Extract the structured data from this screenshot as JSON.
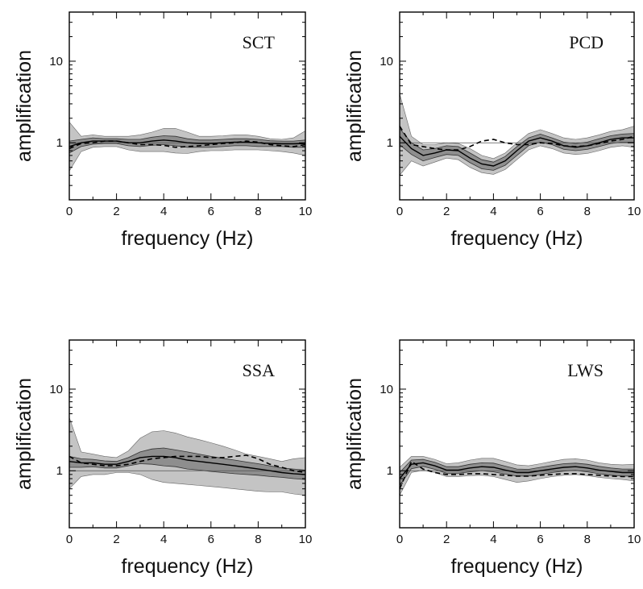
{
  "figure": {
    "xlabel": "frequency (Hz)",
    "ylabel": "amplification",
    "colors": {
      "outer_band": "#c4c4c4",
      "inner_band": "#8e8e8e",
      "line": "#000000",
      "frame": "#000000"
    }
  },
  "chart_data": [
    {
      "type": "line",
      "title": "SCT",
      "xlabel": "frequency (Hz)",
      "ylabel": "amplification",
      "xlim": [
        0,
        10
      ],
      "ylim": [
        0.2,
        40
      ],
      "yscale": "log",
      "x_ticks": [
        0,
        2,
        4,
        6,
        8,
        10
      ],
      "y_ticks": [
        1,
        10
      ],
      "x_tick_labels": [
        "0",
        "2",
        "4",
        "6",
        "8",
        "10"
      ],
      "y_tick_labels": [
        "1",
        "10"
      ],
      "x": [
        0,
        0.5,
        1,
        1.5,
        2,
        2.5,
        3,
        3.5,
        4,
        4.5,
        5,
        5.5,
        6,
        6.5,
        7,
        7.5,
        8,
        8.5,
        9,
        9.5,
        10
      ],
      "series": [
        {
          "role": "mean",
          "style": "solid",
          "values": [
            0.9,
            1.0,
            1.05,
            1.05,
            1.05,
            1.0,
            1.0,
            1.05,
            1.08,
            1.05,
            1.0,
            0.98,
            0.98,
            1.0,
            1.02,
            1.02,
            1.0,
            0.98,
            0.97,
            0.97,
            0.98
          ]
        },
        {
          "role": "inner_band_upper",
          "values": [
            1.05,
            1.1,
            1.15,
            1.12,
            1.12,
            1.1,
            1.1,
            1.17,
            1.22,
            1.2,
            1.12,
            1.08,
            1.08,
            1.1,
            1.12,
            1.12,
            1.1,
            1.06,
            1.05,
            1.05,
            1.08
          ]
        },
        {
          "role": "inner_band_lower",
          "values": [
            0.75,
            0.9,
            0.96,
            0.98,
            0.98,
            0.92,
            0.9,
            0.93,
            0.95,
            0.92,
            0.88,
            0.88,
            0.88,
            0.9,
            0.92,
            0.92,
            0.9,
            0.9,
            0.9,
            0.88,
            0.88
          ]
        },
        {
          "role": "outer_band_upper",
          "values": [
            1.8,
            1.2,
            1.25,
            1.2,
            1.2,
            1.2,
            1.25,
            1.35,
            1.5,
            1.5,
            1.35,
            1.2,
            1.2,
            1.22,
            1.25,
            1.25,
            1.2,
            1.12,
            1.1,
            1.15,
            1.4
          ]
        },
        {
          "role": "outer_band_lower",
          "values": [
            0.45,
            0.78,
            0.88,
            0.9,
            0.9,
            0.82,
            0.78,
            0.78,
            0.78,
            0.75,
            0.74,
            0.78,
            0.8,
            0.8,
            0.82,
            0.82,
            0.82,
            0.8,
            0.78,
            0.75,
            0.7
          ]
        },
        {
          "role": "comparison",
          "style": "dashed",
          "values": [
            0.85,
            0.98,
            1.0,
            1.05,
            1.05,
            1.0,
            0.95,
            0.95,
            0.93,
            0.88,
            0.9,
            0.92,
            0.95,
            0.98,
            1.0,
            1.05,
            1.02,
            0.95,
            0.92,
            0.9,
            0.95
          ]
        }
      ]
    },
    {
      "type": "line",
      "title": "PCD",
      "xlabel": "frequency (Hz)",
      "ylabel": "amplification",
      "xlim": [
        0,
        10
      ],
      "ylim": [
        0.2,
        40
      ],
      "yscale": "log",
      "x_ticks": [
        0,
        2,
        4,
        6,
        8,
        10
      ],
      "y_ticks": [
        1,
        10
      ],
      "x_tick_labels": [
        "0",
        "2",
        "4",
        "6",
        "8",
        "10"
      ],
      "y_tick_labels": [
        "1",
        "10"
      ],
      "x": [
        0,
        0.5,
        1,
        1.5,
        2,
        2.5,
        3,
        3.5,
        4,
        4.5,
        5,
        5.5,
        6,
        6.5,
        7,
        7.5,
        8,
        8.5,
        9,
        9.5,
        10
      ],
      "series": [
        {
          "role": "mean",
          "style": "solid",
          "values": [
            1.2,
            0.85,
            0.7,
            0.75,
            0.82,
            0.8,
            0.65,
            0.55,
            0.52,
            0.6,
            0.8,
            1.05,
            1.15,
            1.05,
            0.92,
            0.88,
            0.92,
            1.0,
            1.1,
            1.15,
            1.15
          ]
        },
        {
          "role": "inner_band_upper",
          "values": [
            1.5,
            1.0,
            0.82,
            0.85,
            0.92,
            0.9,
            0.75,
            0.62,
            0.58,
            0.68,
            0.9,
            1.15,
            1.28,
            1.15,
            1.02,
            0.98,
            1.02,
            1.12,
            1.22,
            1.28,
            1.3
          ]
        },
        {
          "role": "inner_band_lower",
          "values": [
            0.95,
            0.72,
            0.6,
            0.66,
            0.72,
            0.7,
            0.57,
            0.48,
            0.46,
            0.53,
            0.7,
            0.92,
            1.02,
            0.95,
            0.83,
            0.8,
            0.83,
            0.9,
            0.98,
            1.02,
            1.02
          ]
        },
        {
          "role": "outer_band_upper",
          "values": [
            4.0,
            1.2,
            0.95,
            0.95,
            1.0,
            0.98,
            0.85,
            0.7,
            0.64,
            0.75,
            1.0,
            1.3,
            1.45,
            1.3,
            1.15,
            1.1,
            1.15,
            1.25,
            1.38,
            1.45,
            1.6
          ]
        },
        {
          "role": "outer_band_lower",
          "values": [
            0.4,
            0.6,
            0.52,
            0.58,
            0.65,
            0.62,
            0.5,
            0.43,
            0.41,
            0.47,
            0.62,
            0.82,
            0.92,
            0.85,
            0.75,
            0.72,
            0.74,
            0.8,
            0.88,
            0.92,
            0.88
          ]
        },
        {
          "role": "comparison",
          "style": "dashed",
          "values": [
            1.6,
            0.95,
            0.9,
            0.85,
            0.82,
            0.82,
            0.9,
            1.05,
            1.1,
            1.0,
            0.95,
            0.95,
            1.0,
            0.98,
            0.92,
            0.9,
            0.92,
            0.98,
            1.05,
            1.1,
            1.2
          ]
        }
      ]
    },
    {
      "type": "line",
      "title": "SSA",
      "xlabel": "frequency (Hz)",
      "ylabel": "amplification",
      "xlim": [
        0,
        10
      ],
      "ylim": [
        0.2,
        40
      ],
      "yscale": "log",
      "x_ticks": [
        0,
        2,
        4,
        6,
        8,
        10
      ],
      "y_ticks": [
        1,
        10
      ],
      "x_tick_labels": [
        "0",
        "2",
        "4",
        "6",
        "8",
        "10"
      ],
      "y_tick_labels": [
        "1",
        "10"
      ],
      "x": [
        0,
        0.5,
        1,
        1.5,
        2,
        2.5,
        3,
        3.5,
        4,
        4.5,
        5,
        5.5,
        6,
        6.5,
        7,
        7.5,
        8,
        8.5,
        9,
        9.5,
        10
      ],
      "series": [
        {
          "role": "mean",
          "style": "solid",
          "values": [
            1.3,
            1.25,
            1.25,
            1.2,
            1.2,
            1.3,
            1.45,
            1.5,
            1.5,
            1.45,
            1.35,
            1.3,
            1.25,
            1.2,
            1.15,
            1.1,
            1.05,
            1.0,
            0.95,
            0.92,
            0.9
          ]
        },
        {
          "role": "inner_band_upper",
          "values": [
            1.5,
            1.4,
            1.38,
            1.32,
            1.3,
            1.45,
            1.7,
            1.85,
            1.9,
            1.8,
            1.7,
            1.6,
            1.5,
            1.42,
            1.35,
            1.28,
            1.22,
            1.15,
            1.08,
            1.05,
            1.02
          ]
        },
        {
          "role": "inner_band_lower",
          "values": [
            1.1,
            1.1,
            1.12,
            1.08,
            1.08,
            1.15,
            1.22,
            1.2,
            1.15,
            1.12,
            1.05,
            1.02,
            0.98,
            0.95,
            0.92,
            0.9,
            0.88,
            0.85,
            0.83,
            0.8,
            0.78
          ]
        },
        {
          "role": "outer_band_upper",
          "values": [
            4.5,
            1.7,
            1.6,
            1.5,
            1.45,
            1.75,
            2.5,
            3.0,
            3.1,
            2.9,
            2.6,
            2.4,
            2.2,
            2.0,
            1.8,
            1.6,
            1.5,
            1.4,
            1.3,
            1.4,
            1.45
          ]
        },
        {
          "role": "outer_band_lower",
          "values": [
            0.6,
            0.85,
            0.9,
            0.9,
            0.95,
            0.95,
            0.9,
            0.78,
            0.72,
            0.7,
            0.68,
            0.66,
            0.64,
            0.62,
            0.6,
            0.58,
            0.56,
            0.55,
            0.55,
            0.52,
            0.5
          ]
        },
        {
          "role": "comparison",
          "style": "dashed",
          "values": [
            1.5,
            1.25,
            1.2,
            1.15,
            1.15,
            1.2,
            1.3,
            1.4,
            1.45,
            1.5,
            1.5,
            1.5,
            1.45,
            1.45,
            1.5,
            1.55,
            1.4,
            1.2,
            1.1,
            1.0,
            0.95
          ]
        }
      ]
    },
    {
      "type": "line",
      "title": "LWS",
      "xlabel": "frequency (Hz)",
      "ylabel": "amplification",
      "xlim": [
        0,
        10
      ],
      "ylim": [
        0.2,
        40
      ],
      "yscale": "log",
      "x_ticks": [
        0,
        2,
        4,
        6,
        8,
        10
      ],
      "y_ticks": [
        1,
        10
      ],
      "x_tick_labels": [
        "0",
        "2",
        "4",
        "6",
        "8",
        "10"
      ],
      "y_tick_labels": [
        "1",
        "10"
      ],
      "x": [
        0,
        0.5,
        1,
        1.5,
        2,
        2.5,
        3,
        3.5,
        4,
        4.5,
        5,
        5.5,
        6,
        6.5,
        7,
        7.5,
        8,
        8.5,
        9,
        9.5,
        10
      ],
      "series": [
        {
          "role": "mean",
          "style": "solid",
          "values": [
            0.8,
            1.2,
            1.25,
            1.15,
            1.02,
            1.02,
            1.08,
            1.12,
            1.1,
            1.02,
            0.95,
            0.95,
            1.0,
            1.05,
            1.1,
            1.12,
            1.08,
            1.02,
            0.98,
            0.95,
            0.95
          ]
        },
        {
          "role": "inner_band_upper",
          "values": [
            0.95,
            1.35,
            1.38,
            1.27,
            1.12,
            1.12,
            1.2,
            1.25,
            1.24,
            1.14,
            1.05,
            1.04,
            1.1,
            1.16,
            1.22,
            1.24,
            1.2,
            1.13,
            1.08,
            1.05,
            1.05
          ]
        },
        {
          "role": "inner_band_lower",
          "values": [
            0.66,
            1.06,
            1.13,
            1.04,
            0.93,
            0.93,
            0.97,
            1.0,
            0.97,
            0.91,
            0.86,
            0.86,
            0.9,
            0.95,
            0.99,
            1.01,
            0.97,
            0.92,
            0.88,
            0.86,
            0.86
          ]
        },
        {
          "role": "outer_band_upper",
          "values": [
            1.1,
            1.5,
            1.5,
            1.38,
            1.22,
            1.25,
            1.35,
            1.42,
            1.42,
            1.3,
            1.18,
            1.15,
            1.22,
            1.3,
            1.38,
            1.4,
            1.35,
            1.25,
            1.2,
            1.18,
            1.2
          ]
        },
        {
          "role": "outer_band_lower",
          "values": [
            0.5,
            0.95,
            1.02,
            0.95,
            0.85,
            0.85,
            0.87,
            0.88,
            0.85,
            0.78,
            0.72,
            0.75,
            0.8,
            0.85,
            0.88,
            0.9,
            0.87,
            0.83,
            0.8,
            0.78,
            0.75
          ]
        },
        {
          "role": "comparison",
          "style": "dashed",
          "values": [
            0.6,
            1.3,
            1.05,
            0.95,
            0.9,
            0.9,
            0.92,
            0.92,
            0.9,
            0.88,
            0.86,
            0.86,
            0.88,
            0.9,
            0.92,
            0.92,
            0.9,
            0.88,
            0.86,
            0.85,
            0.85
          ]
        }
      ]
    }
  ]
}
